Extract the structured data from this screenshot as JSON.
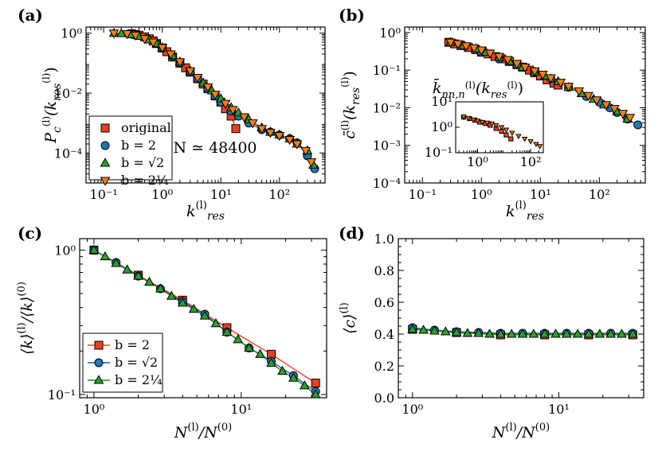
{
  "colors": {
    "original": "#e8411f",
    "b2": "#1f77b4",
    "bsqrt2": "#2ca02c",
    "b4rt2": "#ff7f0e",
    "line_b2": "#ff3b1a",
    "line_bsqrt2": "#1f5fa0",
    "line_b4rt2": "#1f8a1f"
  },
  "chart_data": [
    {
      "id": "a",
      "panel_label": "(a)",
      "type": "line",
      "xscale": "log",
      "yscale": "log",
      "xlim": [
        0.05,
        600
      ],
      "ylim": [
        1e-05,
        1.6
      ],
      "xticks": [
        {
          "v": 0.1,
          "label": "10⁻¹"
        },
        {
          "v": 1,
          "label": "10⁰"
        },
        {
          "v": 10,
          "label": "10¹"
        },
        {
          "v": 100,
          "label": "10²"
        }
      ],
      "yticks": [
        {
          "v": 0.0001,
          "label": "10⁻⁴"
        },
        {
          "v": 0.01,
          "label": "10⁻²"
        },
        {
          "v": 1,
          "label": "10⁰"
        }
      ],
      "xlabel": "k_res^(l)",
      "ylabel": "P_c^(l)(k_res^(l))",
      "annotation": "N ≃ 48400",
      "legend_position": "lower-left",
      "series": [
        {
          "name": "original",
          "key": "original",
          "marker": "square",
          "x": [
            0.3,
            0.35,
            0.4,
            0.5,
            0.6,
            0.7,
            0.8,
            1.0,
            1.2,
            1.5,
            2,
            2.5,
            3,
            4,
            5,
            6,
            8,
            10,
            12,
            15,
            18
          ],
          "y": [
            0.95,
            0.9,
            0.85,
            0.75,
            0.65,
            0.55,
            0.45,
            0.32,
            0.24,
            0.16,
            0.1,
            0.07,
            0.05,
            0.03,
            0.02,
            0.014,
            0.008,
            0.005,
            0.003,
            0.0017,
            0.00065
          ]
        },
        {
          "name": "b = 2",
          "key": "b2",
          "marker": "circle",
          "x": [
            0.8,
            1,
            1.5,
            2,
            3,
            4,
            6,
            8,
            10,
            15,
            20,
            30,
            50,
            70,
            100,
            150,
            200,
            300,
            400
          ],
          "y": [
            0.45,
            0.32,
            0.17,
            0.1,
            0.05,
            0.03,
            0.014,
            0.008,
            0.005,
            0.0025,
            0.0017,
            0.001,
            0.0006,
            0.0005,
            0.0004,
            0.0003,
            0.00022,
            8e-05,
            3e-05
          ]
        },
        {
          "name": "b = √2",
          "key": "bsqrt2",
          "marker": "triangle-up",
          "x": [
            0.15,
            0.2,
            0.3,
            0.4,
            0.6,
            0.8,
            1,
            1.5,
            2,
            3,
            5,
            7,
            10,
            15,
            20,
            30,
            50,
            70,
            100,
            150,
            200,
            300,
            380
          ],
          "y": [
            1.0,
            0.97,
            0.9,
            0.8,
            0.6,
            0.45,
            0.33,
            0.18,
            0.11,
            0.055,
            0.022,
            0.012,
            0.0065,
            0.0033,
            0.0022,
            0.0013,
            0.0007,
            0.0005,
            0.0004,
            0.0003,
            0.0002,
            0.00012,
            4e-05
          ]
        },
        {
          "name": "b = 2^(1/4)",
          "key": "b4rt2",
          "marker": "triangle-down",
          "x": [
            0.15,
            0.25,
            0.35,
            0.5,
            0.7,
            1,
            1.4,
            2,
            3,
            4,
            6,
            8,
            12,
            16,
            25,
            35,
            50,
            70,
            100,
            150,
            200,
            280,
            350
          ],
          "y": [
            1.0,
            0.95,
            0.85,
            0.65,
            0.5,
            0.33,
            0.2,
            0.11,
            0.055,
            0.033,
            0.016,
            0.009,
            0.0045,
            0.0028,
            0.0016,
            0.001,
            0.00065,
            0.00048,
            0.00038,
            0.00028,
            0.0002,
            0.00012,
            5e-05
          ]
        }
      ]
    },
    {
      "id": "b",
      "panel_label": "(b)",
      "type": "line",
      "xscale": "log",
      "yscale": "log",
      "xlim": [
        0.05,
        600
      ],
      "ylim": [
        0.0001,
        1.4
      ],
      "xticks": [
        {
          "v": 0.1,
          "label": "10⁻¹"
        },
        {
          "v": 1,
          "label": "10⁰"
        },
        {
          "v": 10,
          "label": "10¹"
        },
        {
          "v": 100,
          "label": "10²"
        }
      ],
      "yticks": [
        {
          "v": 0.0001,
          "label": "10⁻⁴"
        },
        {
          "v": 0.001,
          "label": "10⁻³"
        },
        {
          "v": 0.01,
          "label": "10⁻²"
        },
        {
          "v": 0.1,
          "label": "10⁻¹"
        },
        {
          "v": 1,
          "label": "10⁰"
        }
      ],
      "xlabel": "k_res^(l)",
      "ylabel": "c̄^(l)(k_res^(l))",
      "series": [
        {
          "name": "original",
          "key": "original",
          "marker": "square",
          "x": [
            0.28,
            0.35,
            0.45,
            0.6,
            0.8,
            1,
            1.3,
            1.7,
            2.2,
            3,
            4,
            5,
            6.5,
            8,
            10,
            13,
            17,
            20
          ],
          "y": [
            0.55,
            0.5,
            0.45,
            0.4,
            0.35,
            0.3,
            0.27,
            0.23,
            0.2,
            0.17,
            0.14,
            0.12,
            0.1,
            0.085,
            0.07,
            0.055,
            0.045,
            0.04
          ]
        },
        {
          "name": "b = 2",
          "key": "b2",
          "marker": "circle",
          "x": [
            1,
            2,
            4,
            8,
            15,
            30,
            60,
            100,
            150,
            200,
            300,
            450
          ],
          "y": [
            0.3,
            0.2,
            0.14,
            0.09,
            0.06,
            0.035,
            0.02,
            0.014,
            0.01,
            0.0075,
            0.005,
            0.0035
          ]
        },
        {
          "name": "b = √2",
          "key": "bsqrt2",
          "marker": "triangle-up",
          "x": [
            0.3,
            0.5,
            0.8,
            1.2,
            2,
            3,
            5,
            8,
            12,
            20,
            30,
            50,
            80,
            120,
            200,
            300
          ],
          "y": [
            0.55,
            0.45,
            0.37,
            0.3,
            0.22,
            0.17,
            0.12,
            0.09,
            0.07,
            0.05,
            0.035,
            0.024,
            0.017,
            0.012,
            0.008,
            0.005
          ]
        },
        {
          "name": "b = 2^(1/4)",
          "key": "b4rt2",
          "marker": "triangle-down",
          "x": [
            0.3,
            0.4,
            0.55,
            0.75,
            1,
            1.4,
            2,
            2.8,
            4,
            5.5,
            8,
            11,
            15,
            22,
            30,
            45,
            65,
            90,
            130,
            180,
            250,
            330
          ],
          "y": [
            0.55,
            0.5,
            0.44,
            0.39,
            0.34,
            0.28,
            0.23,
            0.19,
            0.15,
            0.12,
            0.095,
            0.077,
            0.062,
            0.047,
            0.037,
            0.028,
            0.021,
            0.016,
            0.012,
            0.0095,
            0.007,
            0.0055
          ]
        }
      ],
      "inset": {
        "title": "k̄_nn,n^(l)(k_res^(l))",
        "xscale": "log",
        "yscale": "log",
        "xlim": [
          0.15,
          300
        ],
        "ylim": [
          0.1,
          10
        ],
        "xticks": [
          {
            "v": 1,
            "label": "10⁰"
          },
          {
            "v": 100,
            "label": "10²"
          }
        ],
        "yticks": [
          {
            "v": 0.1,
            "label": "10⁻¹"
          },
          {
            "v": 1,
            "label": "10⁰"
          },
          {
            "v": 10,
            "label": "10¹"
          }
        ],
        "series": [
          {
            "key": "original",
            "marker": "square",
            "x": [
              0.3,
              0.5,
              0.8,
              1.2,
              2,
              3,
              5,
              8,
              12,
              18
            ],
            "y": [
              2.5,
              2.2,
              1.9,
              1.6,
              1.4,
              1.2,
              0.9,
              0.7,
              0.5,
              0.35
            ]
          },
          {
            "key": "b4rt2",
            "marker": "triangle-down",
            "x": [
              0.3,
              0.45,
              0.7,
              1,
              1.5,
              2.3,
              3.5,
              5,
              8,
              12,
              20,
              35,
              60,
              100,
              160,
              220
            ],
            "y": [
              2.6,
              2.3,
              2.0,
              1.8,
              1.6,
              1.5,
              1.4,
              1.2,
              1.0,
              0.8,
              0.6,
              0.45,
              0.35,
              0.28,
              0.22,
              0.18
            ]
          }
        ]
      }
    },
    {
      "id": "c",
      "panel_label": "(c)",
      "type": "line",
      "xscale": "log",
      "yscale": "log",
      "xlim": [
        0.8,
        38
      ],
      "ylim": [
        0.095,
        1.2
      ],
      "xticks": [
        {
          "v": 1,
          "label": "10⁰"
        },
        {
          "v": 10,
          "label": "10¹"
        }
      ],
      "yticks": [
        {
          "v": 0.1,
          "label": "10⁻¹"
        },
        {
          "v": 1,
          "label": "10⁰"
        }
      ],
      "xlabel": "N^(l)/N^(0)",
      "ylabel": "⟨k⟩^(l)/⟨k⟩^(0)",
      "legend_position": "lower-left",
      "series": [
        {
          "name": "b = 2",
          "key": "b2",
          "marker": "square",
          "fill": "original",
          "line": "line_b2",
          "x": [
            1,
            2,
            4,
            8,
            16,
            32
          ],
          "y": [
            1.0,
            0.67,
            0.45,
            0.29,
            0.19,
            0.12
          ]
        },
        {
          "name": "b = √2",
          "key": "bsqrt2",
          "marker": "circle",
          "fill": "b2",
          "line": "line_bsqrt2",
          "x": [
            1,
            1.414,
            2,
            2.828,
            4,
            5.657,
            8,
            11.31,
            16,
            22.63,
            32
          ],
          "y": [
            1.0,
            0.82,
            0.66,
            0.54,
            0.44,
            0.36,
            0.27,
            0.21,
            0.17,
            0.135,
            0.105
          ]
        },
        {
          "name": "b = 2^(1/4)",
          "key": "b4rt2",
          "marker": "triangle-up",
          "fill": "bsqrt2",
          "line": "line_b4rt2",
          "x": [
            1,
            1.189,
            1.414,
            1.682,
            2,
            2.378,
            2.828,
            3.364,
            4,
            4.757,
            5.657,
            6.727,
            8,
            9.514,
            11.31,
            13.45,
            16,
            19.03,
            22.63,
            26.91,
            32
          ],
          "y": [
            1.0,
            0.9,
            0.81,
            0.73,
            0.66,
            0.6,
            0.54,
            0.48,
            0.43,
            0.39,
            0.35,
            0.31,
            0.27,
            0.24,
            0.21,
            0.19,
            0.165,
            0.145,
            0.13,
            0.115,
            0.1
          ]
        }
      ]
    },
    {
      "id": "d",
      "panel_label": "(d)",
      "type": "line",
      "xscale": "log",
      "yscale": "linear",
      "xlim": [
        0.8,
        38
      ],
      "ylim": [
        0,
        1.0
      ],
      "xticks": [
        {
          "v": 1,
          "label": "10⁰"
        },
        {
          "v": 10,
          "label": "10¹"
        }
      ],
      "yticks": [
        {
          "v": 0,
          "label": "0.0"
        },
        {
          "v": 0.2,
          "label": "0.2"
        },
        {
          "v": 0.4,
          "label": "0.4"
        },
        {
          "v": 0.6,
          "label": "0.6"
        },
        {
          "v": 0.8,
          "label": "0.8"
        },
        {
          "v": 1.0,
          "label": "1.0"
        }
      ],
      "xlabel": "N^(l)/N^(0)",
      "ylabel": "⟨c⟩^(l)",
      "series": [
        {
          "name": "b = 2",
          "key": "b2",
          "marker": "square",
          "fill": "original",
          "line": "line_b2",
          "x": [
            1,
            2,
            4,
            8,
            16,
            32
          ],
          "y": [
            0.43,
            0.41,
            0.395,
            0.395,
            0.395,
            0.395
          ]
        },
        {
          "name": "b = √2",
          "key": "bsqrt2",
          "marker": "circle",
          "fill": "b2",
          "line": "line_bsqrt2",
          "x": [
            1,
            1.414,
            2,
            2.828,
            4,
            5.657,
            8,
            11.31,
            16,
            22.63,
            32
          ],
          "y": [
            0.44,
            0.425,
            0.415,
            0.41,
            0.405,
            0.405,
            0.405,
            0.405,
            0.405,
            0.405,
            0.405
          ]
        },
        {
          "name": "b = 2^(1/4)",
          "key": "b4rt2",
          "marker": "triangle-up",
          "fill": "bsqrt2",
          "line": "line_b4rt2",
          "x": [
            1,
            1.189,
            1.414,
            1.682,
            2,
            2.378,
            2.828,
            3.364,
            4,
            4.757,
            5.657,
            6.727,
            8,
            9.514,
            11.31,
            13.45,
            16,
            19.03,
            22.63,
            26.91,
            32
          ],
          "y": [
            0.43,
            0.425,
            0.42,
            0.415,
            0.41,
            0.405,
            0.405,
            0.4,
            0.4,
            0.4,
            0.4,
            0.4,
            0.4,
            0.4,
            0.4,
            0.4,
            0.4,
            0.4,
            0.4,
            0.4,
            0.4
          ]
        }
      ]
    }
  ],
  "legend_a": [
    {
      "label": "original",
      "key": "original",
      "marker": "square"
    },
    {
      "label": "b = 2",
      "key": "b2",
      "marker": "circle"
    },
    {
      "label": "b = √2",
      "key": "bsqrt2",
      "marker": "triangle-up"
    },
    {
      "label": "b = 2¼",
      "key": "b4rt2",
      "marker": "triangle-down"
    }
  ],
  "legend_c": [
    {
      "label": "b = 2",
      "key": "original",
      "line": "line_b2",
      "marker": "square"
    },
    {
      "label": "b = √2",
      "key": "b2",
      "line": "line_bsqrt2",
      "marker": "circle"
    },
    {
      "label": "b = 2¼",
      "key": "bsqrt2",
      "line": "line_b4rt2",
      "marker": "triangle-up"
    }
  ]
}
